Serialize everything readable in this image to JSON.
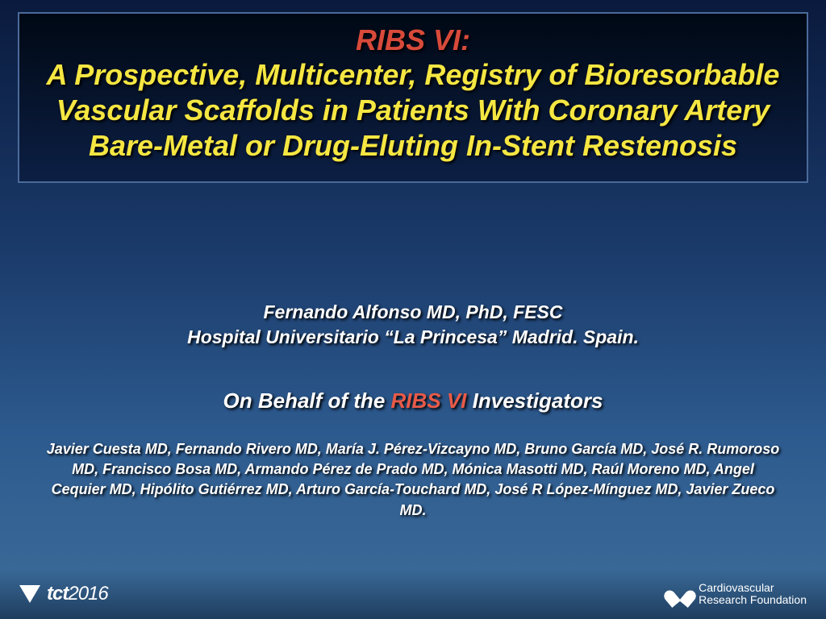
{
  "colors": {
    "title_red": "#d84a3a",
    "title_yellow": "#f5e642",
    "text_white": "#ffffff",
    "accent_red": "#e85a48",
    "bg_top": "#0a1a3d",
    "bg_bottom": "#3d6d9a",
    "box_border": "#4a6a9a",
    "box_bg_top": "#000814",
    "box_bg_bottom": "#0c1f44"
  },
  "typography": {
    "family": "Arial",
    "title_size_pt": 36,
    "presenter_size_pt": 23,
    "behalf_size_pt": 26,
    "investigators_size_pt": 18,
    "style": "bold italic"
  },
  "title": {
    "main": "RIBS VI:",
    "sub": "A Prospective, Multicenter, Registry of Bioresorbable Vascular Scaffolds in Patients With Coronary Artery Bare-Metal or Drug-Eluting In-Stent Restenosis"
  },
  "presenter": {
    "name": "Fernando Alfonso MD, PhD, FESC",
    "affiliation": "Hospital Universitario “La Princesa” Madrid. Spain."
  },
  "behalf": {
    "prefix": "On Behalf of the ",
    "highlight": "RIBS VI",
    "suffix": " Investigators"
  },
  "investigators": "Javier Cuesta MD, Fernando Rivero MD, María J. Pérez-Vizcayno MD, Bruno García MD, José R. Rumoroso MD, Francisco Bosa MD, Armando Pérez de Prado MD, Mónica Masotti MD, Raúl Moreno MD, Angel Cequier MD, Hipólito Gutiérrez MD, Arturo García-Touchard MD, José R López-Mínguez MD, Javier Zueco MD.",
  "footer": {
    "left_brand": "tct",
    "left_year": "2016",
    "right_line1": "Cardiovascular",
    "right_line2": "Research Foundation"
  }
}
